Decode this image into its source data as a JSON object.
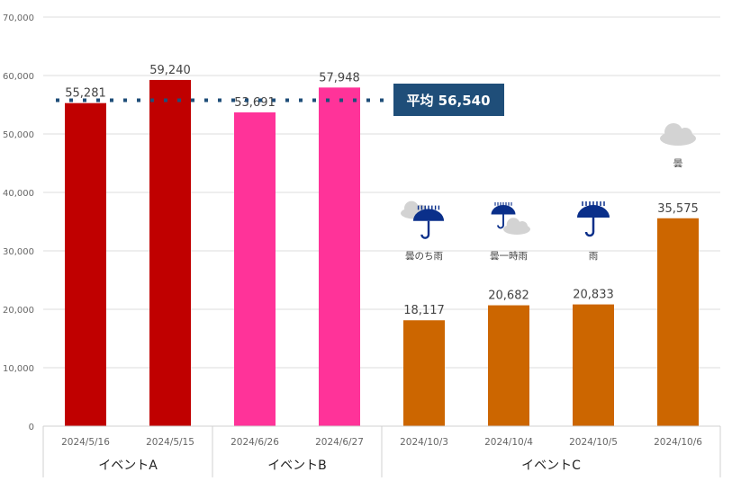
{
  "chart_data": {
    "type": "bar",
    "title": "",
    "xlabel": "",
    "ylabel": "",
    "ylim": [
      0,
      70000
    ],
    "yticks": [
      0,
      10000,
      20000,
      30000,
      40000,
      50000,
      60000,
      70000
    ],
    "ytick_labels": [
      "0",
      "10,000",
      "20,000",
      "30,000",
      "40,000",
      "50,000",
      "60,000",
      "70,000"
    ],
    "grid": true,
    "categories": [
      "2024/5/16",
      "2024/5/15",
      "2024/6/26",
      "2024/6/27",
      "2024/10/3",
      "2024/10/4",
      "2024/10/5",
      "2024/10/6"
    ],
    "values": [
      55281,
      59240,
      53691,
      57948,
      18117,
      20682,
      20833,
      35575
    ],
    "data_labels": [
      "55,281",
      "59,240",
      "53,691",
      "57,948",
      "18,117",
      "20,682",
      "20,833",
      "35,575"
    ],
    "groups": [
      {
        "label": "イベントA",
        "count": 2,
        "color": "#c00000"
      },
      {
        "label": "イベントB",
        "count": 2,
        "color": "#ff3399"
      },
      {
        "label": "イベントC",
        "count": 4,
        "color": "#cc6600"
      }
    ],
    "average": {
      "value": 56540,
      "label": "平均 56,540",
      "color": "#1f4e79"
    },
    "weather": [
      {
        "index": 4,
        "icon": "cloud-then-rain-icon",
        "label": "曇のち雨"
      },
      {
        "index": 5,
        "icon": "cloud-occasional-rain-icon",
        "label": "曇一時雨"
      },
      {
        "index": 6,
        "icon": "umbrella-rain-icon",
        "label": "雨"
      },
      {
        "index": 7,
        "icon": "cloud-icon",
        "label": "曇"
      }
    ]
  }
}
